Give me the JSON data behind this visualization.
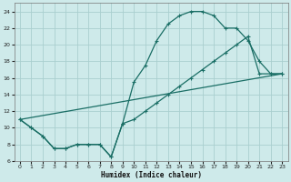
{
  "xlabel": "Humidex (Indice chaleur)",
  "bg_color": "#ceeaea",
  "grid_color": "#aacfcf",
  "line_color": "#1a6e65",
  "xlim": [
    -0.5,
    23.5
  ],
  "ylim": [
    6,
    25
  ],
  "xticks": [
    0,
    1,
    2,
    3,
    4,
    5,
    6,
    7,
    8,
    9,
    10,
    11,
    12,
    13,
    14,
    15,
    16,
    17,
    18,
    19,
    20,
    21,
    22,
    23
  ],
  "yticks": [
    6,
    8,
    10,
    12,
    14,
    16,
    18,
    20,
    22,
    24
  ],
  "line1_x": [
    0,
    1,
    2,
    3,
    4,
    5,
    6,
    7,
    8,
    9,
    10,
    11,
    12,
    13,
    14,
    15,
    16,
    17,
    18,
    19,
    20,
    21,
    22,
    23
  ],
  "line1_y": [
    11,
    10,
    9,
    7.5,
    7.5,
    8,
    8,
    8,
    6.5,
    10.5,
    15.5,
    17.5,
    20.5,
    22.5,
    23.5,
    24,
    24,
    23.5,
    22.0,
    22.0,
    20.5,
    18,
    16.5,
    16.5
  ],
  "line2_x": [
    0,
    1,
    2,
    3,
    4,
    5,
    6,
    7,
    8,
    9,
    10,
    11,
    12,
    13,
    14,
    15,
    16,
    17,
    18,
    19,
    20,
    21,
    22,
    23
  ],
  "line2_y": [
    11,
    10,
    9,
    7.5,
    7.5,
    8,
    8,
    8,
    6.5,
    10.5,
    11.0,
    12.0,
    13.0,
    14.0,
    15.0,
    16.0,
    17.0,
    18.0,
    19.0,
    20.0,
    21.0,
    16.5,
    16.5,
    16.5
  ],
  "line3_x": [
    0,
    23
  ],
  "line3_y": [
    11,
    16.5
  ]
}
